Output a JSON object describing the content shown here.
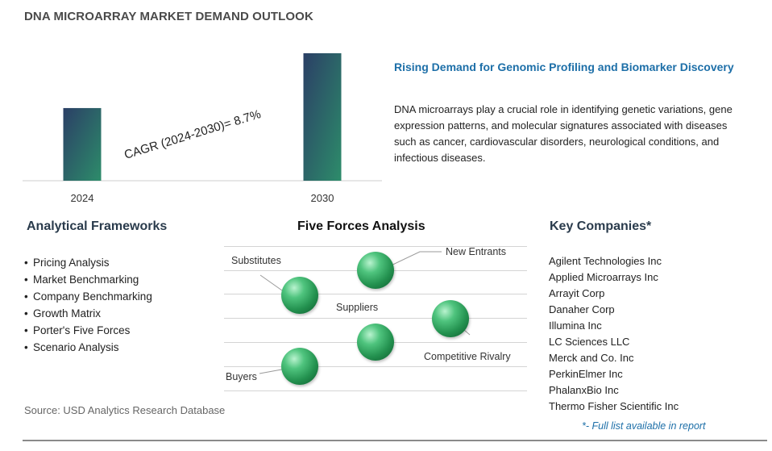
{
  "title": "DNA MICROARRAY MARKET DEMAND OUTLOOK",
  "chart_data": {
    "type": "bar",
    "categories": [
      "2024",
      "2030"
    ],
    "values": [
      0.57,
      1.0
    ],
    "annotation": "CAGR (2024-2030)=  8.7%",
    "colors": {
      "bar_top": "#2b3f66",
      "bar_bottom": "#2d8c6a"
    }
  },
  "insight": {
    "title": "Rising Demand for Genomic Profiling and Biomarker Discovery",
    "text": "DNA microarrays play a crucial role in identifying genetic variations, gene expression patterns, and molecular signatures associated with diseases such as cancer, cardiovascular disorders, neurological conditions, and infectious diseases."
  },
  "frameworks": {
    "title": "Analytical Frameworks",
    "items": [
      "Pricing Analysis",
      "Market Benchmarking",
      "Company Benchmarking",
      "Growth Matrix",
      "Porter's Five Forces",
      "Scenario Analysis"
    ]
  },
  "five_forces": {
    "title": "Five Forces Analysis",
    "labels": {
      "new_entrants": "New Entrants",
      "substitutes": "Substitutes",
      "suppliers": "Suppliers",
      "competitive_rivalry": "Competitive Rivalry",
      "buyers": "Buyers"
    }
  },
  "companies": {
    "title": "Key Companies*",
    "items": [
      "Agilent Technologies Inc",
      "Applied Microarrays Inc",
      "Arrayit Corp",
      "Danaher Corp",
      "Illumina Inc",
      "LC Sciences LLC",
      "Merck and Co. Inc",
      "PerkinElmer Inc",
      "PhalanxBio Inc",
      "Thermo Fisher Scientific Inc"
    ],
    "note": "*- Full list available in report"
  },
  "source": "Source: USD Analytics Research Database"
}
